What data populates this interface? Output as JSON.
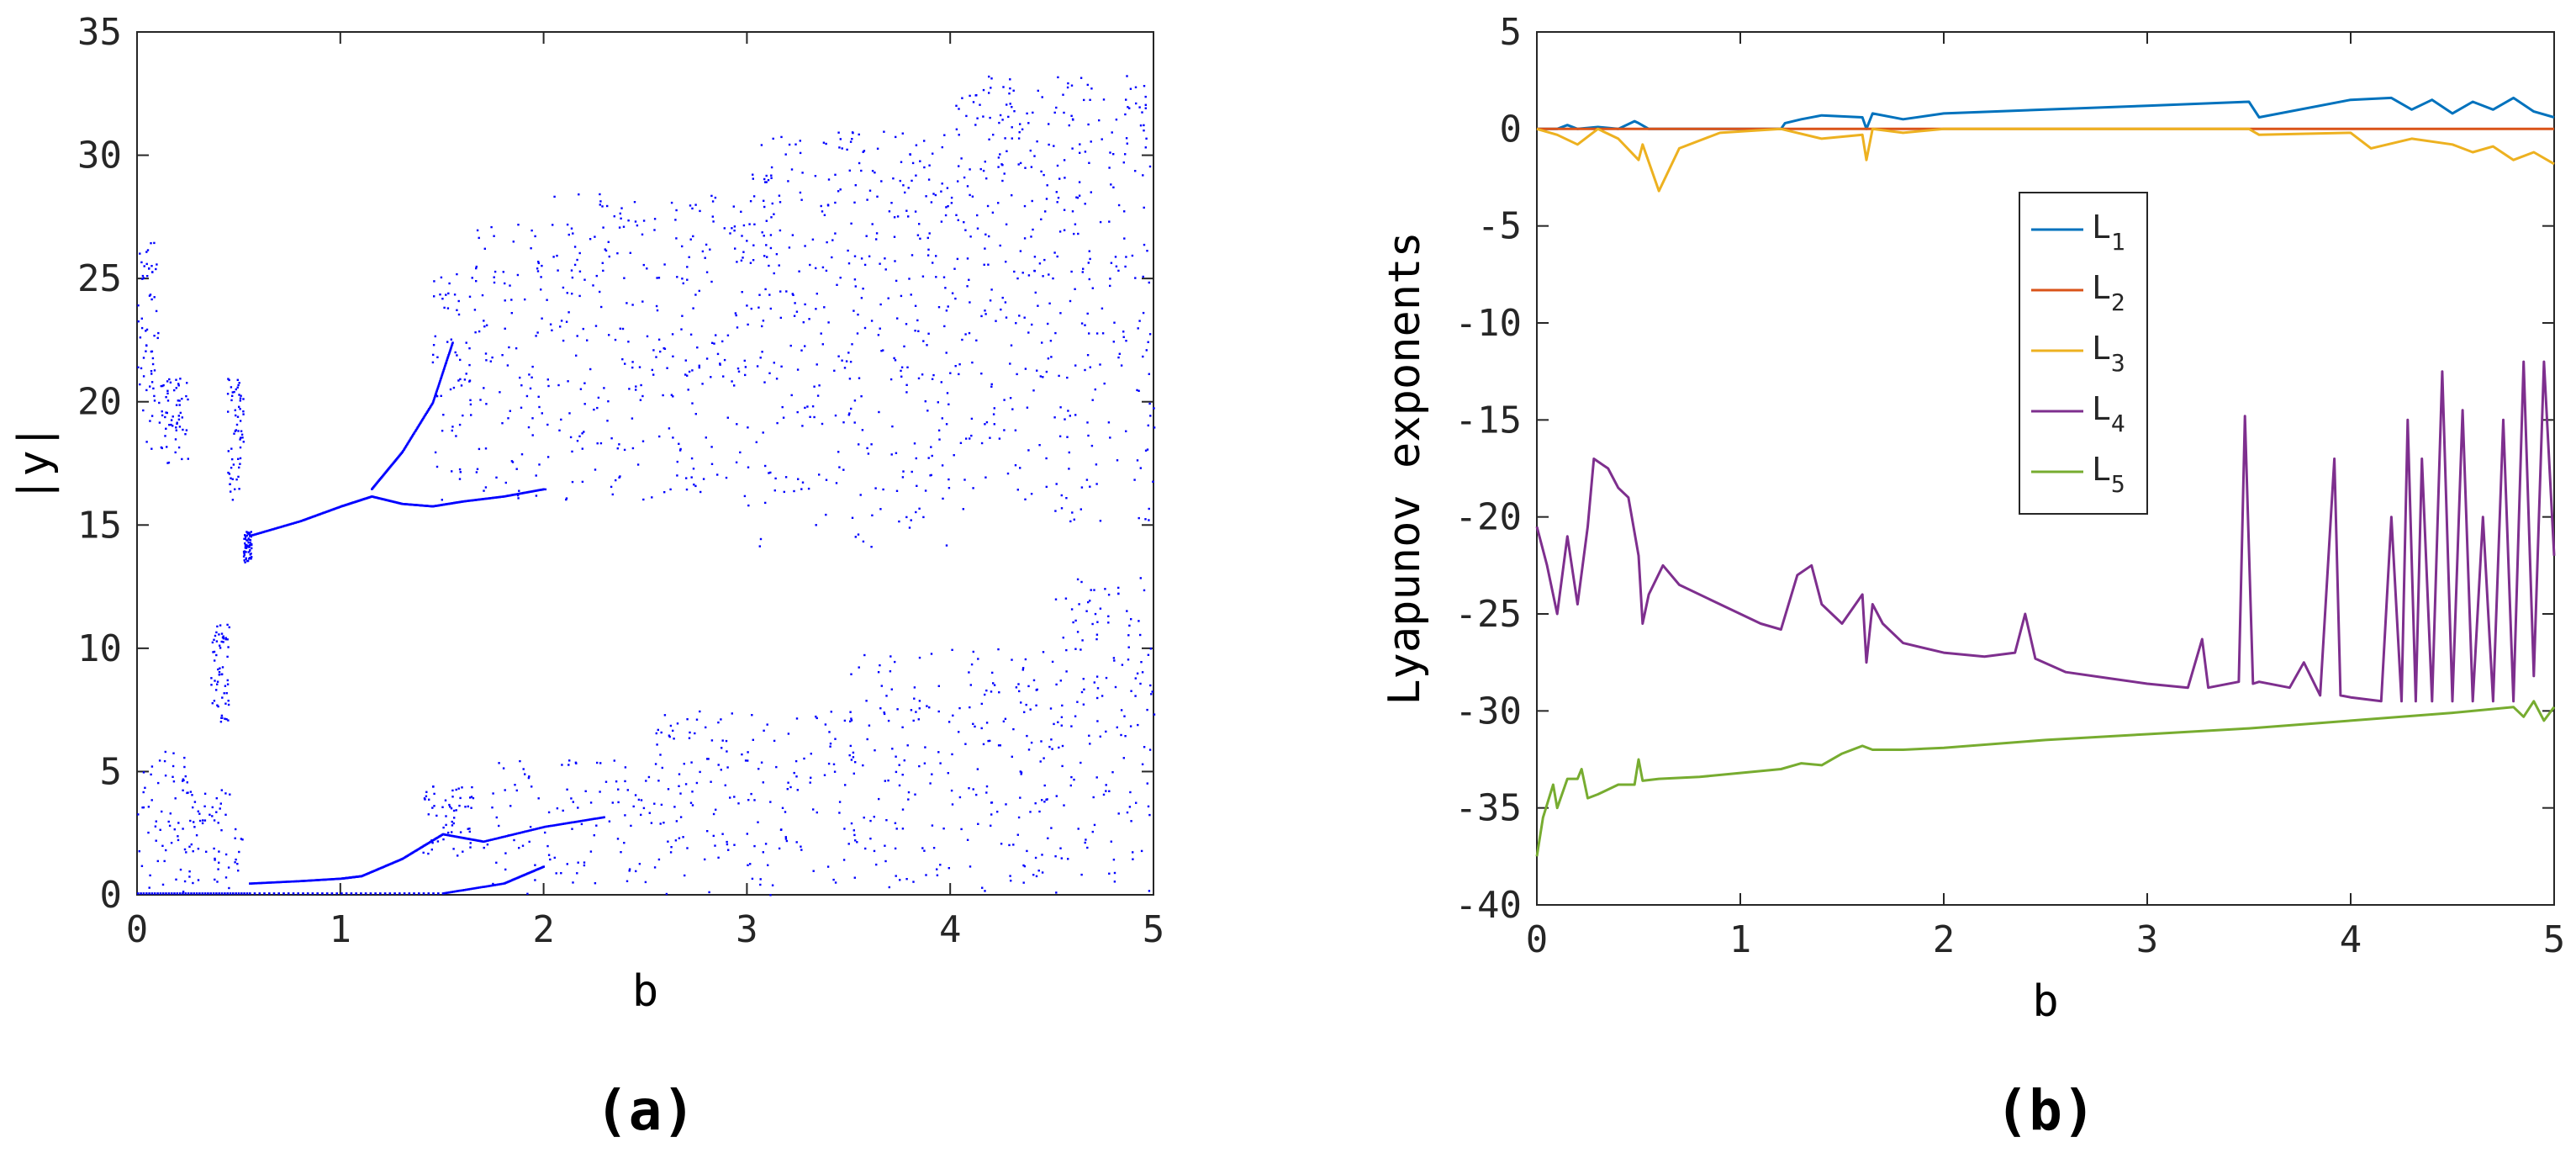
{
  "chart_data": [
    {
      "type": "scatter",
      "panel_label": "(a)",
      "xlabel": "b",
      "ylabel": "|y|",
      "xlim": [
        0,
        5
      ],
      "ylim": [
        0,
        35
      ],
      "xticks": [
        0,
        1,
        2,
        3,
        4,
        5
      ],
      "yticks": [
        0,
        5,
        10,
        15,
        20,
        25,
        30,
        35
      ],
      "grid": false,
      "marker_color": "#0000ff",
      "bands": [
        {
          "b_from": 0.0,
          "b_to": 0.1,
          "ymin": 18.0,
          "ymax": 26.5
        },
        {
          "b_from": 0.1,
          "b_to": 0.25,
          "ymin": 17.5,
          "ymax": 21.0
        },
        {
          "b_from": 0.44,
          "b_to": 0.52,
          "ymin": 16.0,
          "ymax": 21.0
        },
        {
          "b_from": 0.52,
          "b_to": 0.56,
          "ymin": 13.5,
          "ymax": 14.8
        },
        {
          "b_from": 0.36,
          "b_to": 0.45,
          "ymin": 7.0,
          "ymax": 11.0
        },
        {
          "b_from": 0.0,
          "b_to": 0.25,
          "ymin": 0.0,
          "ymax": 6.0
        },
        {
          "b_from": 0.25,
          "b_to": 0.52,
          "ymin": 0.3,
          "ymax": 4.5
        },
        {
          "b_from": 1.4,
          "b_to": 1.65,
          "ymin": 1.5,
          "ymax": 4.5
        },
        {
          "b_from": 1.45,
          "b_to": 1.65,
          "ymin": 16.0,
          "ymax": 25.5
        },
        {
          "b_from": 1.65,
          "b_to": 2.0,
          "ymin": 16.0,
          "ymax": 27.5
        },
        {
          "b_from": 2.0,
          "b_to": 3.0,
          "ymin": 16.0,
          "ymax": 28.5
        },
        {
          "b_from": 3.0,
          "b_to": 4.0,
          "ymin": 14.0,
          "ymax": 31.0
        },
        {
          "b_from": 4.0,
          "b_to": 5.0,
          "ymin": 15.0,
          "ymax": 33.3
        },
        {
          "b_from": 1.7,
          "b_to": 2.5,
          "ymin": 0.0,
          "ymax": 5.5
        },
        {
          "b_from": 2.5,
          "b_to": 3.5,
          "ymin": 0.0,
          "ymax": 7.5
        },
        {
          "b_from": 3.5,
          "b_to": 4.5,
          "ymin": 0.0,
          "ymax": 10.0
        },
        {
          "b_from": 4.5,
          "b_to": 5.0,
          "ymin": 0.0,
          "ymax": 13.0
        }
      ],
      "branches": [
        {
          "name": "upper-periodic",
          "b": [
            0.55,
            0.8,
            1.0,
            1.15,
            1.3,
            1.45,
            1.6,
            1.8,
            2.0
          ],
          "y": [
            14.6,
            15.2,
            15.8,
            16.2,
            15.9,
            15.8,
            16.0,
            16.2,
            16.5
          ]
        },
        {
          "name": "upper-split",
          "b": [
            1.15,
            1.3,
            1.45,
            1.55
          ],
          "y": [
            16.5,
            18.0,
            20.0,
            22.5
          ]
        },
        {
          "name": "lower-periodic",
          "b": [
            0.55,
            0.8,
            1.0,
            1.1,
            1.3,
            1.5,
            1.7,
            2.0,
            2.3
          ],
          "y": [
            0.5,
            0.6,
            0.7,
            0.8,
            1.5,
            2.5,
            2.2,
            2.8,
            3.2
          ]
        },
        {
          "name": "zero-branch",
          "b": [
            0.0,
            0.55,
            1.5,
            1.8,
            2.0
          ],
          "y": [
            0.1,
            0.1,
            0.1,
            0.5,
            1.2
          ]
        }
      ]
    },
    {
      "type": "line",
      "panel_label": "(b)",
      "xlabel": "b",
      "ylabel": "Lyapunov exponents",
      "xlim": [
        0,
        5
      ],
      "ylim": [
        -40,
        5
      ],
      "xticks": [
        0,
        1,
        2,
        3,
        4,
        5
      ],
      "yticks": [
        5,
        0,
        -5,
        -10,
        -15,
        -20,
        -25,
        -30,
        -35,
        -40
      ],
      "grid": false,
      "legend_position": "center-right",
      "series": [
        {
          "name": "L",
          "subscript": "1",
          "color": "#0072bd",
          "x": [
            0,
            0.1,
            0.15,
            0.2,
            0.3,
            0.4,
            0.48,
            0.5,
            0.55,
            1.0,
            1.2,
            1.22,
            1.3,
            1.4,
            1.6,
            1.62,
            1.65,
            1.8,
            2.0,
            2.5,
            3.0,
            3.5,
            3.55,
            4.0,
            4.2,
            4.3,
            4.4,
            4.5,
            4.6,
            4.7,
            4.8,
            4.9,
            5.0
          ],
          "y": [
            0,
            0,
            0.2,
            0,
            0.1,
            0,
            0.4,
            0.3,
            0,
            0,
            0,
            0.3,
            0.5,
            0.7,
            0.6,
            0,
            0.8,
            0.5,
            0.8,
            1.0,
            1.2,
            1.4,
            0.6,
            1.5,
            1.6,
            1.0,
            1.5,
            0.8,
            1.4,
            1.0,
            1.6,
            0.9,
            0.6
          ]
        },
        {
          "name": "L",
          "subscript": "2",
          "color": "#d95319",
          "x": [
            0,
            5
          ],
          "y": [
            0,
            0
          ]
        },
        {
          "name": "L",
          "subscript": "3",
          "color": "#edb120",
          "x": [
            0,
            0.1,
            0.2,
            0.3,
            0.4,
            0.5,
            0.52,
            0.6,
            0.7,
            0.9,
            1.2,
            1.4,
            1.6,
            1.62,
            1.65,
            1.8,
            2.0,
            3.0,
            3.5,
            3.55,
            4.0,
            4.1,
            4.3,
            4.5,
            4.6,
            4.7,
            4.8,
            4.9,
            5.0
          ],
          "y": [
            0,
            -0.3,
            -0.8,
            0,
            -0.5,
            -1.6,
            -0.8,
            -3.2,
            -1.0,
            -0.2,
            0,
            -0.5,
            -0.3,
            -1.6,
            0,
            -0.2,
            0,
            0,
            0,
            -0.3,
            -0.2,
            -1.0,
            -0.5,
            -0.8,
            -1.2,
            -0.9,
            -1.6,
            -1.2,
            -1.8
          ]
        },
        {
          "name": "L",
          "subscript": "4",
          "color": "#7e2f8e",
          "x": [
            0,
            0.05,
            0.1,
            0.15,
            0.2,
            0.25,
            0.28,
            0.35,
            0.4,
            0.45,
            0.5,
            0.52,
            0.55,
            0.62,
            0.7,
            0.9,
            1.1,
            1.2,
            1.28,
            1.35,
            1.4,
            1.5,
            1.6,
            1.62,
            1.65,
            1.7,
            1.8,
            2.0,
            2.2,
            2.35,
            2.4,
            2.45,
            2.6,
            2.8,
            3.0,
            3.2,
            3.27,
            3.3,
            3.45,
            3.48,
            3.52,
            3.55,
            3.7,
            3.77,
            3.85,
            3.92,
            3.95,
            4.0,
            4.15,
            4.2,
            4.25,
            4.28,
            4.32,
            4.35,
            4.4,
            4.45,
            4.5,
            4.55,
            4.6,
            4.65,
            4.7,
            4.75,
            4.8,
            4.85,
            4.9,
            4.95,
            5.0
          ],
          "y": [
            -20.5,
            -22.5,
            -25,
            -21,
            -24.5,
            -20.5,
            -17,
            -17.5,
            -18.5,
            -19,
            -22,
            -25.5,
            -24,
            -22.5,
            -23.5,
            -24.5,
            -25.5,
            -25.8,
            -23,
            -22.5,
            -24.5,
            -25.5,
            -24,
            -27.5,
            -24.5,
            -25.5,
            -26.5,
            -27,
            -27.2,
            -27,
            -25,
            -27.3,
            -28,
            -28.3,
            -28.6,
            -28.8,
            -26.3,
            -28.8,
            -28.5,
            -14.8,
            -28.6,
            -28.5,
            -28.8,
            -27.5,
            -29.2,
            -17,
            -29.2,
            -29.3,
            -29.5,
            -20,
            -29.5,
            -15,
            -29.5,
            -17,
            -29.5,
            -12.5,
            -29.5,
            -14.5,
            -29.5,
            -20,
            -29.5,
            -15,
            -29.5,
            -12,
            -28.2,
            -12,
            -22
          ]
        },
        {
          "name": "L",
          "subscript": "5",
          "color": "#77ac30",
          "x": [
            0,
            0.03,
            0.08,
            0.1,
            0.15,
            0.2,
            0.22,
            0.25,
            0.3,
            0.4,
            0.48,
            0.5,
            0.52,
            0.6,
            0.8,
            1.0,
            1.2,
            1.3,
            1.4,
            1.5,
            1.6,
            1.65,
            1.8,
            2.0,
            2.5,
            3.0,
            3.5,
            4.0,
            4.5,
            4.8,
            4.85,
            4.9,
            4.95,
            5.0
          ],
          "y": [
            -37.5,
            -35.5,
            -33.8,
            -35,
            -33.5,
            -33.5,
            -33,
            -34.5,
            -34.3,
            -33.8,
            -33.8,
            -32.5,
            -33.6,
            -33.5,
            -33.4,
            -33.2,
            -33,
            -32.7,
            -32.8,
            -32.2,
            -31.8,
            -32,
            -32,
            -31.9,
            -31.5,
            -31.2,
            -30.9,
            -30.5,
            -30.1,
            -29.8,
            -30.3,
            -29.5,
            -30.5,
            -29.8
          ]
        }
      ]
    }
  ]
}
